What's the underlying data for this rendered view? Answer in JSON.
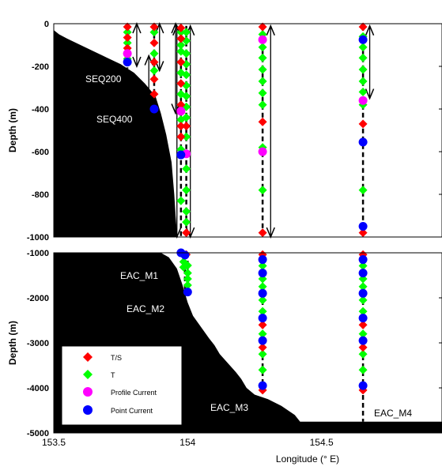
{
  "colors": {
    "ts": "#ff0000",
    "t": "#00ff00",
    "profile_current": "#ff00ff",
    "point_current": "#0000ff",
    "bathymetry": "#000000",
    "mooring_line": "#000000",
    "range_arrow": "#000000"
  },
  "chart_data": [
    {
      "type": "scatter",
      "panel": "upper",
      "title": "",
      "xlabel": "",
      "ylabel": "Depth (m)",
      "xlim": [
        153.5,
        154.95
      ],
      "ylim": [
        -1000,
        0
      ],
      "yticks": [
        0,
        -200,
        -400,
        -600,
        -800,
        -1000
      ],
      "grid": false,
      "bathymetry": {
        "x": [
          153.5,
          153.52,
          153.55,
          153.6,
          153.65,
          153.7,
          153.75,
          153.8,
          153.84,
          153.88,
          153.9,
          153.92,
          153.94,
          153.95,
          153.955,
          153.96,
          153.96
        ],
        "depth": [
          -30,
          -50,
          -70,
          -100,
          -130,
          -160,
          -190,
          -230,
          -280,
          -340,
          -420,
          -520,
          -650,
          -800,
          -900,
          -980,
          -1000
        ]
      },
      "moorings": [
        {
          "name": "SEQ200",
          "x": 153.775,
          "line": [
            -20,
            -210
          ]
        },
        {
          "name": "SEQ400",
          "x": 153.875,
          "line": [
            -10,
            -400
          ]
        },
        {
          "name": "",
          "x": 153.975,
          "line": [
            -10,
            -1000
          ]
        },
        {
          "name": "",
          "x": 153.995,
          "line": [
            -10,
            -1000
          ]
        },
        {
          "name": "",
          "x": 154.28,
          "line": [
            -10,
            -1000
          ]
        },
        {
          "name": "",
          "x": 154.655,
          "line": [
            -10,
            -1000
          ]
        }
      ],
      "range_arrows": [
        {
          "x": 153.81,
          "from": 0,
          "to": -200
        },
        {
          "x": 153.895,
          "from": 0,
          "to": -220
        },
        {
          "x": 153.855,
          "from": -150,
          "to": -400
        },
        {
          "x": 153.955,
          "from": 0,
          "to": -420
        },
        {
          "x": 153.96,
          "from": -10,
          "to": -1000
        },
        {
          "x": 154.01,
          "from": -10,
          "to": -1000
        },
        {
          "x": 154.31,
          "from": -10,
          "to": -1000
        },
        {
          "x": 154.68,
          "from": -10,
          "to": -350
        }
      ],
      "instruments": {
        "ts": [
          [
            153.775,
            -15
          ],
          [
            153.775,
            -65
          ],
          [
            153.775,
            -115
          ],
          [
            153.775,
            -140
          ],
          [
            153.875,
            -15
          ],
          [
            153.875,
            -90
          ],
          [
            153.875,
            -180
          ],
          [
            153.875,
            -260
          ],
          [
            153.875,
            -330
          ],
          [
            153.975,
            -20
          ],
          [
            153.975,
            -70
          ],
          [
            153.975,
            -180
          ],
          [
            153.975,
            -280
          ],
          [
            153.975,
            -380
          ],
          [
            153.975,
            -480
          ],
          [
            153.975,
            -530
          ],
          [
            153.995,
            -480
          ],
          [
            153.995,
            -980
          ],
          [
            154.28,
            -15
          ],
          [
            154.28,
            -460
          ],
          [
            154.28,
            -980
          ],
          [
            154.655,
            -15
          ],
          [
            154.655,
            -470
          ],
          [
            154.655,
            -980
          ]
        ],
        "t": [
          [
            153.775,
            -40
          ],
          [
            153.775,
            -90
          ],
          [
            153.775,
            -165
          ],
          [
            153.875,
            -40
          ],
          [
            153.875,
            -140
          ],
          [
            153.875,
            -220
          ],
          [
            153.975,
            -40
          ],
          [
            153.975,
            -100
          ],
          [
            153.975,
            -130
          ],
          [
            153.975,
            -230
          ],
          [
            153.975,
            -330
          ],
          [
            153.975,
            -450
          ],
          [
            153.975,
            -590
          ],
          [
            153.975,
            -830
          ],
          [
            153.995,
            -40
          ],
          [
            153.995,
            -80
          ],
          [
            153.995,
            -140
          ],
          [
            153.995,
            -190
          ],
          [
            153.995,
            -240
          ],
          [
            153.995,
            -290
          ],
          [
            153.995,
            -340
          ],
          [
            153.995,
            -390
          ],
          [
            153.995,
            -440
          ],
          [
            153.995,
            -530
          ],
          [
            153.995,
            -680
          ],
          [
            153.995,
            -780
          ],
          [
            153.995,
            -880
          ],
          [
            153.995,
            -930
          ],
          [
            154.28,
            -50
          ],
          [
            154.28,
            -110
          ],
          [
            154.28,
            -160
          ],
          [
            154.28,
            -215
          ],
          [
            154.28,
            -270
          ],
          [
            154.28,
            -325
          ],
          [
            154.28,
            -380
          ],
          [
            154.28,
            -580
          ],
          [
            154.28,
            -780
          ],
          [
            154.655,
            -60
          ],
          [
            154.655,
            -110
          ],
          [
            154.655,
            -160
          ],
          [
            154.655,
            -215
          ],
          [
            154.655,
            -270
          ],
          [
            154.655,
            -320
          ],
          [
            154.655,
            -380
          ],
          [
            154.655,
            -780
          ]
        ],
        "profile_current": [
          [
            153.775,
            -140
          ],
          [
            153.975,
            -410
          ],
          [
            153.995,
            -610
          ],
          [
            154.28,
            -75
          ],
          [
            154.28,
            -600
          ],
          [
            154.655,
            -360
          ]
        ],
        "point_current": [
          [
            153.775,
            -180
          ],
          [
            153.875,
            -400
          ],
          [
            153.975,
            -615
          ],
          [
            154.655,
            -75
          ],
          [
            154.655,
            -555
          ],
          [
            154.655,
            -950
          ]
        ]
      }
    },
    {
      "type": "scatter",
      "panel": "lower",
      "title": "",
      "xlabel": "Longitude (° E)",
      "ylabel": "Depth (m)",
      "xlim": [
        153.5,
        154.95
      ],
      "ylim": [
        -5000,
        -1000
      ],
      "yticks": [
        -1000,
        -2000,
        -3000,
        -4000,
        -5000
      ],
      "xticks": [
        153.5,
        154,
        154.5
      ],
      "xticklabels": [
        "153.5",
        "154",
        "154.5"
      ],
      "grid": false,
      "bathymetry": {
        "x": [
          153.5,
          153.9,
          153.93,
          153.96,
          153.98,
          154.0,
          154.02,
          154.05,
          154.08,
          154.1,
          154.12,
          154.15,
          154.18,
          154.2,
          154.22,
          154.25,
          154.3,
          154.35,
          154.4,
          154.42,
          154.95
        ],
        "depth": [
          -1000,
          -1000,
          -1100,
          -1350,
          -1700,
          -2100,
          -2400,
          -2650,
          -2900,
          -3050,
          -3250,
          -3450,
          -3650,
          -3800,
          -4000,
          -4150,
          -4250,
          -4400,
          -4600,
          -4750,
          -4750
        ]
      },
      "moorings": [
        {
          "name": "EAC_M1",
          "x": 153.99,
          "line": [
            -1000,
            -1900
          ]
        },
        {
          "name": "EAC_M2",
          "x": 154.0,
          "line": [
            -1000,
            -1900
          ]
        },
        {
          "name": "EAC_M3",
          "x": 154.28,
          "line": [
            -1000,
            -4100
          ]
        },
        {
          "name": "EAC_M4",
          "x": 154.655,
          "line": [
            -1000,
            -4750
          ]
        }
      ],
      "instruments": {
        "ts": [
          [
            153.995,
            -1040
          ],
          [
            154.28,
            -1040
          ],
          [
            154.28,
            -2600
          ],
          [
            154.28,
            -3100
          ],
          [
            154.28,
            -4050
          ],
          [
            154.655,
            -1040
          ],
          [
            154.655,
            -2600
          ],
          [
            154.655,
            -3100
          ],
          [
            154.655,
            -4050
          ]
        ],
        "t": [
          [
            153.985,
            -1200
          ],
          [
            153.985,
            -1320
          ],
          [
            154.0,
            -1280
          ],
          [
            154.0,
            -1450
          ],
          [
            154.0,
            -1580
          ],
          [
            154.0,
            -1720
          ],
          [
            154.28,
            -1290
          ],
          [
            154.28,
            -1580
          ],
          [
            154.28,
            -1750
          ],
          [
            154.28,
            -2050
          ],
          [
            154.28,
            -2300
          ],
          [
            154.28,
            -2800
          ],
          [
            154.28,
            -3250
          ],
          [
            154.28,
            -3600
          ],
          [
            154.655,
            -1290
          ],
          [
            154.655,
            -1580
          ],
          [
            154.655,
            -1750
          ],
          [
            154.655,
            -2050
          ],
          [
            154.655,
            -2300
          ],
          [
            154.655,
            -2800
          ],
          [
            154.655,
            -3250
          ],
          [
            154.655,
            -3600
          ]
        ],
        "profile_current": [],
        "point_current": [
          [
            153.975,
            -1000
          ],
          [
            153.99,
            -1050
          ],
          [
            154.0,
            -1870
          ],
          [
            154.28,
            -1150
          ],
          [
            154.28,
            -1450
          ],
          [
            154.28,
            -1900
          ],
          [
            154.28,
            -2450
          ],
          [
            154.28,
            -2950
          ],
          [
            154.28,
            -3950
          ],
          [
            154.655,
            -1150
          ],
          [
            154.655,
            -1450
          ],
          [
            154.655,
            -1900
          ],
          [
            154.655,
            -2450
          ],
          [
            154.655,
            -2950
          ],
          [
            154.655,
            -3950
          ]
        ]
      },
      "legend": {
        "placement": "bottom-left",
        "entries": [
          {
            "key": "ts",
            "label": "T/S",
            "marker": "diamond"
          },
          {
            "key": "t",
            "label": "T",
            "marker": "diamond"
          },
          {
            "key": "profile_current",
            "label": "Profile Current",
            "marker": "circle"
          },
          {
            "key": "point_current",
            "label": "Point Current",
            "marker": "circle"
          }
        ]
      }
    }
  ]
}
